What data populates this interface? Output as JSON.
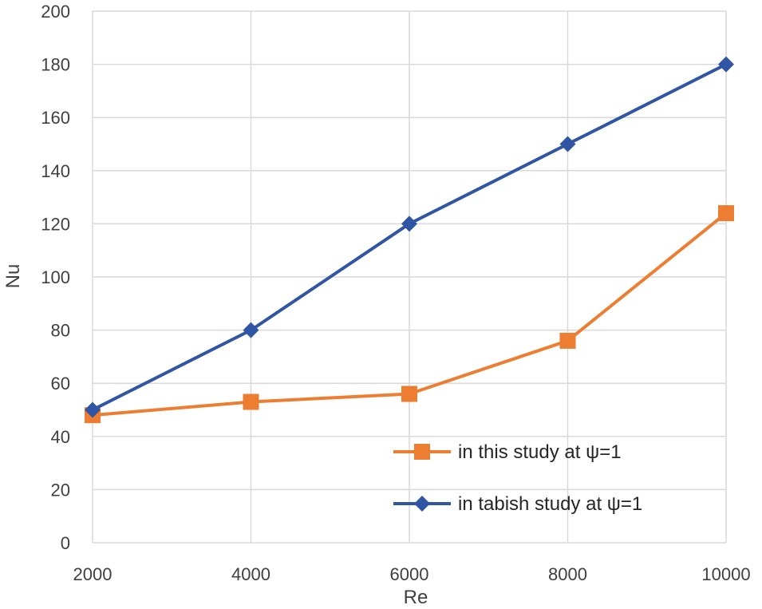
{
  "chart_data": {
    "type": "line",
    "title": "",
    "xlabel": "Re",
    "ylabel": "Nu",
    "xlim": [
      2000,
      10000
    ],
    "ylim": [
      0,
      200
    ],
    "xticks": [
      "2000",
      "4000",
      "6000",
      "8000",
      "10000"
    ],
    "yticks": [
      "0",
      "20",
      "40",
      "60",
      "80",
      "100",
      "120",
      "140",
      "160",
      "180",
      "200"
    ],
    "grid": true,
    "legend_position": "bottom-right",
    "x": [
      2000,
      4000,
      6000,
      8000,
      10000
    ],
    "series": [
      {
        "name": "in this study at ψ=1",
        "values": [
          48,
          53,
          56,
          76,
          124
        ],
        "color": "#ED7D31",
        "marker": "square"
      },
      {
        "name": "in tabish study at ψ=1",
        "values": [
          50,
          80,
          120,
          150,
          180
        ],
        "color": "#2F55A4",
        "marker": "diamond"
      }
    ]
  }
}
